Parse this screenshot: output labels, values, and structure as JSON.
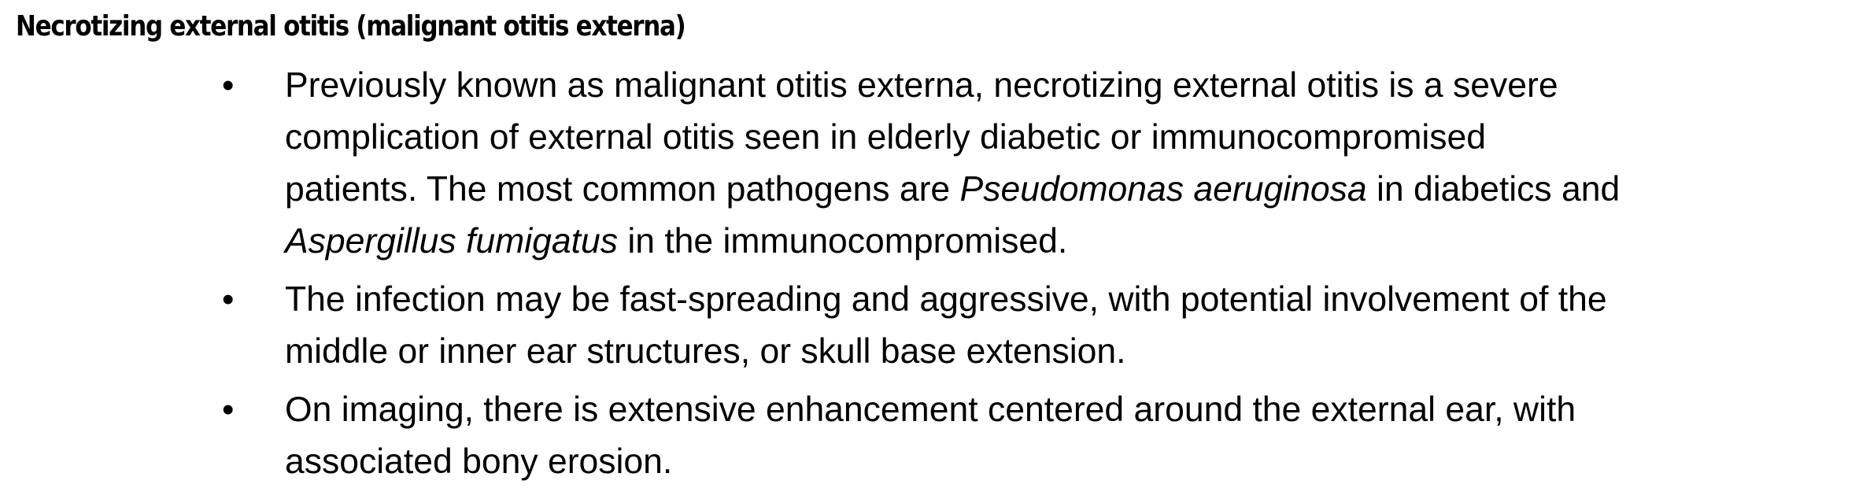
{
  "heading": "Necrotizing external otitis (malignant otitis externa)",
  "bullet_symbol": "•",
  "bullets": [
    {
      "lines": [
        [
          "Previously known as malignant otitis externa, necrotizing external otitis is a severe"
        ],
        [
          "complication of external otitis seen in elderly diabetic or immunocompromised"
        ],
        [
          "patients. The most common pathogens are ",
          "Pseudomonas aeruginosa",
          " in diabetics and"
        ],
        [
          "Aspergillus fumigatus",
          " in the immunocompromised."
        ]
      ]
    },
    {
      "lines": [
        [
          "The infection may be fast-spreading and aggressive, with potential involvement of the"
        ],
        [
          "middle or inner ear structures, or skull base extension."
        ]
      ]
    },
    {
      "lines": [
        [
          "On imaging, there is extensive enhancement centered around the external ear, with"
        ],
        [
          "associated bony erosion."
        ]
      ]
    }
  ]
}
